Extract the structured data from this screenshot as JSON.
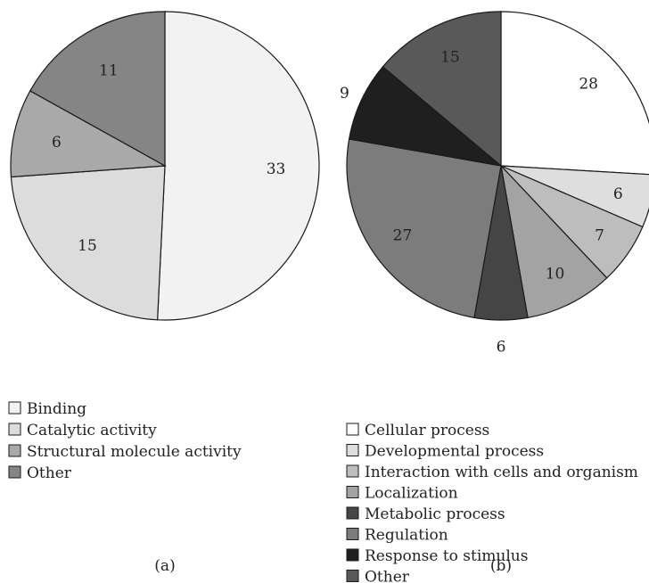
{
  "chart_data": [
    {
      "type": "pie",
      "panel_label": "(a)",
      "categories": [
        "Binding",
        "Catalytic activity",
        "Structural molecule activity",
        "Other"
      ],
      "values": [
        33,
        15,
        6,
        11
      ],
      "colors": [
        "#f2f2f2",
        "#dcdcdc",
        "#a9a9a9",
        "#858585"
      ],
      "start": "12 o'clock",
      "direction": "clockwise",
      "legend_position": "bottom-left"
    },
    {
      "type": "pie",
      "panel_label": "(b)",
      "categories": [
        "Cellular process",
        "Developmental process",
        "Interaction with cells and organism",
        "Localization",
        "Metabolic process",
        "Regulation",
        "Response to stimulus",
        "Other"
      ],
      "values": [
        28,
        6,
        7,
        10,
        6,
        27,
        9,
        15
      ],
      "colors": [
        "#ffffff",
        "#dedede",
        "#bdbdbd",
        "#a3a3a3",
        "#454545",
        "#7c7c7c",
        "#1f1f1f",
        "#595959"
      ],
      "start": "12 o'clock",
      "direction": "clockwise",
      "legend_position": "bottom"
    }
  ]
}
